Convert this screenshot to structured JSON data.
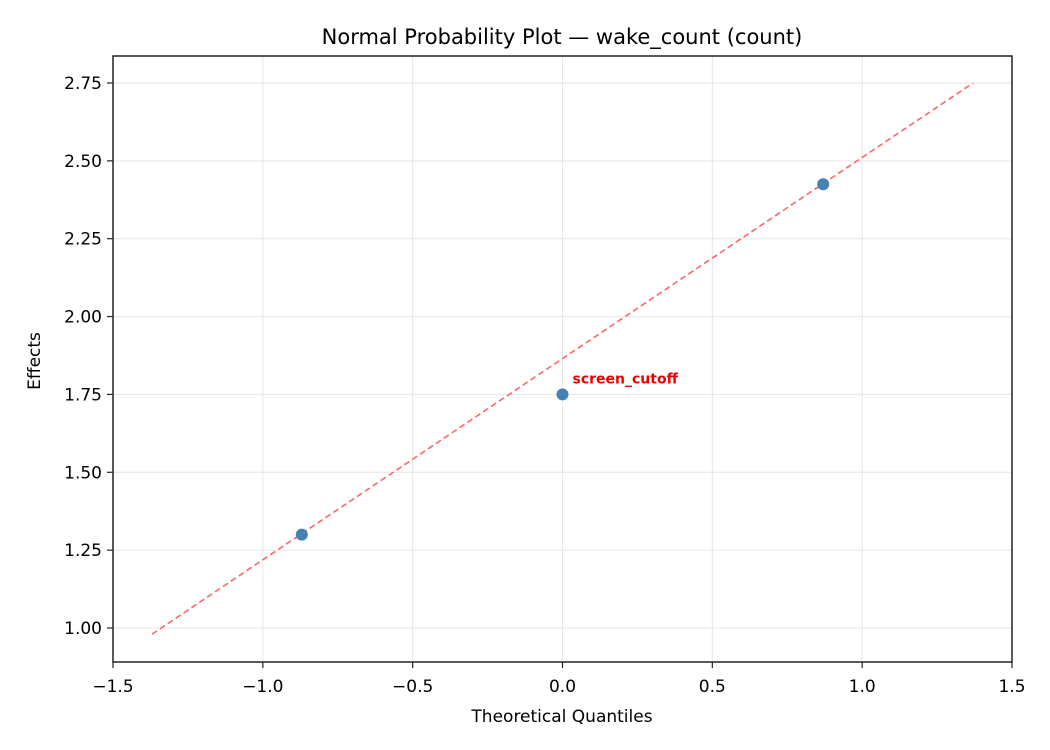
{
  "chart_data": {
    "type": "scatter",
    "title": "Normal Probability Plot — wake_count (count)",
    "xlabel": "Theoretical Quantiles",
    "ylabel": "Effects",
    "xlim": [
      -1.5,
      1.5
    ],
    "ylim": [
      0.9,
      2.84
    ],
    "grid": true,
    "legend": null,
    "x_ticks": [
      -1.5,
      -1.0,
      -0.5,
      0.0,
      0.5,
      1.0,
      1.5
    ],
    "x_tick_labels": [
      "−1.5",
      "−1.0",
      "−0.5",
      "0.0",
      "0.5",
      "1.0",
      "1.5"
    ],
    "y_ticks": [
      1.0,
      1.25,
      1.5,
      1.75,
      2.0,
      2.25,
      2.5,
      2.75
    ],
    "y_tick_labels": [
      "1.00",
      "1.25",
      "1.50",
      "1.75",
      "2.00",
      "2.25",
      "2.50",
      "2.75"
    ],
    "series": [
      {
        "name": "effects",
        "kind": "scatter",
        "color": "#4682b4",
        "x": [
          -0.87,
          0.0,
          0.87
        ],
        "y": [
          1.3,
          1.75,
          2.425
        ]
      },
      {
        "name": "reference line",
        "kind": "line",
        "style": "dashed",
        "color": "#ff6666",
        "x": [
          -1.37,
          1.37
        ],
        "y": [
          0.98,
          2.75
        ]
      }
    ],
    "annotations": [
      {
        "text": "screen_cutoff",
        "x": 0.0,
        "y": 1.75,
        "color": "#ee0000"
      }
    ]
  },
  "colors": {
    "point": "#4682b4",
    "ref_line": "#ff6666",
    "annotation": "#ee0000",
    "grid": "#e6e6e6",
    "axes": "#222222"
  }
}
